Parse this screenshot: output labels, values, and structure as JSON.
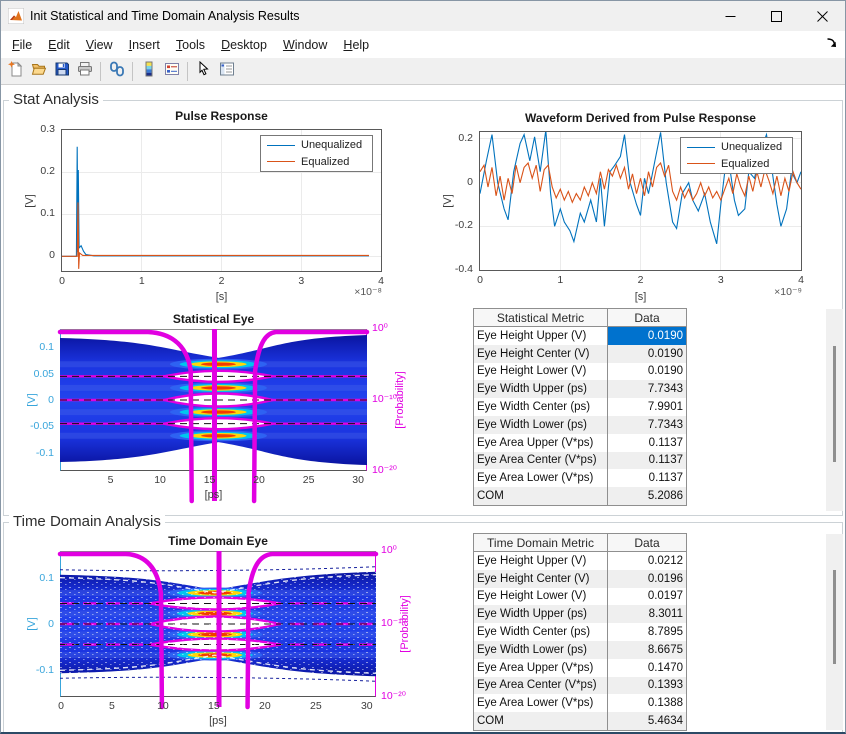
{
  "window": {
    "title": "Init Statistical and Time Domain Analysis Results"
  },
  "menu": {
    "items": [
      "File",
      "Edit",
      "View",
      "Insert",
      "Tools",
      "Desktop",
      "Window",
      "Help"
    ]
  },
  "toolbar": {
    "icons": [
      "new-figure",
      "open-file",
      "save-figure",
      "print-figure",
      "link-plot",
      "insert-colorbar",
      "insert-legend",
      "edit-plot",
      "open-property-inspector"
    ],
    "groups": [
      4,
      1,
      2,
      2
    ]
  },
  "colors": {
    "line_blue": "#0072BD",
    "line_orange": "#D95319",
    "eye_axis_cyan": "#38A5DB",
    "probability_magenta": "#E100E1",
    "selection_blue": "#0072CE",
    "tick_gray": "#3d3d3d"
  },
  "stat_panel": {
    "title": "Stat Analysis",
    "table": {
      "headers": [
        "Statistical Metric",
        "Data"
      ],
      "rows": [
        [
          "Eye Height Upper (V)",
          "0.0190"
        ],
        [
          "Eye Height Center (V)",
          "0.0190"
        ],
        [
          "Eye Height Lower (V)",
          "0.0190"
        ],
        [
          "Eye Width Upper (ps)",
          "7.7343"
        ],
        [
          "Eye Width Center (ps)",
          "7.9901"
        ],
        [
          "Eye Width Lower (ps)",
          "7.7343"
        ],
        [
          "Eye Area Upper (V*ps)",
          "0.1137"
        ],
        [
          "Eye Area Center (V*ps)",
          "0.1137"
        ],
        [
          "Eye Area Lower (V*ps)",
          "0.1137"
        ],
        [
          "COM",
          "5.2086"
        ]
      ],
      "selected_cell": {
        "row": 0,
        "col": 1
      }
    }
  },
  "td_panel": {
    "title": "Time Domain Analysis",
    "table": {
      "headers": [
        "Time Domain Metric",
        "Data"
      ],
      "rows": [
        [
          "Eye Height Upper (V)",
          "0.0212"
        ],
        [
          "Eye Height Center (V)",
          "0.0196"
        ],
        [
          "Eye Height Lower (V)",
          "0.0197"
        ],
        [
          "Eye Width Upper (ps)",
          "8.3011"
        ],
        [
          "Eye Width Center (ps)",
          "8.7895"
        ],
        [
          "Eye Width Lower (ps)",
          "8.6675"
        ],
        [
          "Eye Area Upper (V*ps)",
          "0.1470"
        ],
        [
          "Eye Area Center (V*ps)",
          "0.1393"
        ],
        [
          "Eye Area Lower (V*ps)",
          "0.1388"
        ],
        [
          "COM",
          "5.4634"
        ]
      ],
      "selected_cell": null
    }
  },
  "chart_data": [
    {
      "type": "line",
      "title": "Pulse Response",
      "xlabel": "[s]",
      "ylabel": "[V]",
      "x_multiplier": "×10⁻⁸",
      "xticks": [
        0,
        1,
        2,
        3,
        4
      ],
      "yticks": [
        0,
        0.1,
        0.2,
        0.3
      ],
      "xlim": [
        0,
        4
      ],
      "ylim": [
        -0.035,
        0.3
      ],
      "grid": true,
      "legend": [
        "Unequalized",
        "Equalized"
      ],
      "legend_pos": "northeast",
      "series": [
        {
          "name": "Unequalized",
          "color": "#0072BD",
          "points": [
            [
              0,
              0
            ],
            [
              0.18,
              0
            ],
            [
              0.19,
              0.26
            ],
            [
              0.2,
              0.01
            ],
            [
              0.205,
              0.205
            ],
            [
              0.215,
              0.02
            ],
            [
              0.24,
              0.025
            ],
            [
              0.27,
              0.012
            ],
            [
              0.3,
              0.004
            ],
            [
              0.4,
              0.001
            ],
            [
              3.85,
              0.001
            ]
          ]
        },
        {
          "name": "Equalized",
          "color": "#D95319",
          "points": [
            [
              0,
              0
            ],
            [
              0.19,
              0
            ],
            [
              0.2,
              0.128
            ],
            [
              0.21,
              -0.03
            ],
            [
              0.22,
              0.008
            ],
            [
              0.26,
              0.002
            ],
            [
              3.85,
              0.002
            ]
          ]
        }
      ]
    },
    {
      "type": "line",
      "title": "Waveform Derived from Pulse Response",
      "xlabel": "[s]",
      "ylabel": "[V]",
      "x_multiplier": "×10⁻⁹",
      "xticks": [
        0,
        1,
        2,
        3,
        4
      ],
      "yticks": [
        -0.4,
        -0.2,
        0,
        0.2
      ],
      "xlim": [
        0,
        4
      ],
      "ylim": [
        -0.4,
        0.232
      ],
      "grid": true,
      "legend": [
        "Unequalized",
        "Equalized"
      ],
      "legend_pos": "northeast",
      "series": [
        {
          "name": "Unequalized",
          "color": "#0072BD",
          "points": [
            [
              0,
              -0.05
            ],
            [
              0.08,
              0.1
            ],
            [
              0.15,
              0.22
            ],
            [
              0.22,
              0
            ],
            [
              0.3,
              -0.12
            ],
            [
              0.35,
              -0.17
            ],
            [
              0.42,
              0.05
            ],
            [
              0.5,
              0.18
            ],
            [
              0.55,
              0.22
            ],
            [
              0.62,
              0.1
            ],
            [
              0.68,
              0.21
            ],
            [
              0.75,
              0.05
            ],
            [
              0.82,
              0.24
            ],
            [
              0.88,
              -0.05
            ],
            [
              0.93,
              -0.2
            ],
            [
              1.0,
              -0.12
            ],
            [
              1.05,
              -0.18
            ],
            [
              1.12,
              -0.22
            ],
            [
              1.17,
              -0.27
            ],
            [
              1.25,
              -0.14
            ],
            [
              1.3,
              -0.18
            ],
            [
              1.38,
              -0.08
            ],
            [
              1.45,
              -0.18
            ],
            [
              1.5,
              0.02
            ],
            [
              1.55,
              -0.2
            ],
            [
              1.62,
              0.05
            ],
            [
              1.68,
              0.08
            ],
            [
              1.75,
              0.12
            ],
            [
              1.8,
              0.22
            ],
            [
              1.87,
              0
            ],
            [
              1.95,
              -0.1
            ],
            [
              2.0,
              -0.15
            ],
            [
              2.05,
              0.02
            ],
            [
              2.1,
              -0.05
            ],
            [
              2.18,
              0.1
            ],
            [
              2.25,
              0.23
            ],
            [
              2.32,
              0
            ],
            [
              2.4,
              -0.18
            ],
            [
              2.45,
              -0.21
            ],
            [
              2.52,
              -0.05
            ],
            [
              2.6,
              0
            ],
            [
              2.65,
              -0.08
            ],
            [
              2.72,
              -0.13
            ],
            [
              2.8,
              -0.05
            ],
            [
              2.87,
              -0.18
            ],
            [
              2.95,
              -0.28
            ],
            [
              3.0,
              -0.1
            ],
            [
              3.05,
              0.05
            ],
            [
              3.1,
              0.1
            ],
            [
              3.17,
              -0.08
            ],
            [
              3.22,
              -0.15
            ],
            [
              3.3,
              -0.12
            ],
            [
              3.35,
              0.05
            ],
            [
              3.42,
              0.02
            ],
            [
              3.5,
              0.15
            ],
            [
              3.57,
              0.22
            ],
            [
              3.63,
              0.08
            ],
            [
              3.7,
              -0.1
            ],
            [
              3.75,
              -0.2
            ],
            [
              3.82,
              -0.12
            ],
            [
              3.88,
              0.05
            ],
            [
              3.95,
              0
            ],
            [
              4.0,
              0.05
            ]
          ]
        },
        {
          "name": "Equalized",
          "color": "#D95319",
          "points": [
            [
              0,
              0.05
            ],
            [
              0.05,
              0.08
            ],
            [
              0.1,
              -0.02
            ],
            [
              0.15,
              0.07
            ],
            [
              0.2,
              -0.06
            ],
            [
              0.25,
              0.03
            ],
            [
              0.3,
              -0.08
            ],
            [
              0.35,
              0.02
            ],
            [
              0.4,
              -0.05
            ],
            [
              0.45,
              0.08
            ],
            [
              0.5,
              0
            ],
            [
              0.55,
              0.07
            ],
            [
              0.6,
              0.09
            ],
            [
              0.65,
              0.02
            ],
            [
              0.7,
              0.08
            ],
            [
              0.75,
              -0.04
            ],
            [
              0.8,
              0.06
            ],
            [
              0.85,
              0.08
            ],
            [
              0.9,
              -0.02
            ],
            [
              0.95,
              -0.07
            ],
            [
              1.0,
              -0.03
            ],
            [
              1.05,
              -0.08
            ],
            [
              1.1,
              -0.04
            ],
            [
              1.15,
              -0.09
            ],
            [
              1.2,
              -0.05
            ],
            [
              1.25,
              -0.08
            ],
            [
              1.3,
              -0.02
            ],
            [
              1.35,
              -0.06
            ],
            [
              1.4,
              0
            ],
            [
              1.45,
              -0.05
            ],
            [
              1.5,
              0.05
            ],
            [
              1.55,
              -0.03
            ],
            [
              1.6,
              0.06
            ],
            [
              1.65,
              0.03
            ],
            [
              1.7,
              0.08
            ],
            [
              1.75,
              0.02
            ],
            [
              1.8,
              0.07
            ],
            [
              1.85,
              -0.03
            ],
            [
              1.9,
              0.04
            ],
            [
              1.95,
              -0.05
            ],
            [
              2.0,
              0.02
            ],
            [
              2.05,
              -0.06
            ],
            [
              2.1,
              0.05
            ],
            [
              2.15,
              -0.02
            ],
            [
              2.2,
              0.07
            ],
            [
              2.25,
              0.09
            ],
            [
              2.3,
              0.03
            ],
            [
              2.35,
              0.08
            ],
            [
              2.4,
              -0.04
            ],
            [
              2.45,
              -0.08
            ],
            [
              2.5,
              -0.02
            ],
            [
              2.55,
              -0.07
            ],
            [
              2.6,
              -0.03
            ],
            [
              2.65,
              -0.08
            ],
            [
              2.7,
              -0.05
            ],
            [
              2.75,
              0
            ],
            [
              2.8,
              -0.06
            ],
            [
              2.85,
              -0.02
            ],
            [
              2.9,
              -0.07
            ],
            [
              2.95,
              -0.04
            ],
            [
              3.0,
              -0.08
            ],
            [
              3.05,
              -0.03
            ],
            [
              3.1,
              0.02
            ],
            [
              3.15,
              -0.05
            ],
            [
              3.2,
              0.04
            ],
            [
              3.25,
              -0.02
            ],
            [
              3.3,
              -0.06
            ],
            [
              3.35,
              0.03
            ],
            [
              3.4,
              -0.04
            ],
            [
              3.45,
              0.05
            ],
            [
              3.5,
              -0.02
            ],
            [
              3.55,
              0.06
            ],
            [
              3.6,
              0.01
            ],
            [
              3.65,
              -0.05
            ],
            [
              3.7,
              0.03
            ],
            [
              3.75,
              -0.06
            ],
            [
              3.8,
              0.02
            ],
            [
              3.85,
              -0.04
            ],
            [
              3.9,
              0.05
            ],
            [
              3.95,
              0
            ],
            [
              4.0,
              -0.03
            ]
          ]
        }
      ]
    },
    {
      "type": "eye_density",
      "title": "Statistical Eye",
      "xlabel": "[ps]",
      "ylabel_left": "[V]",
      "ylabel_right": "[Probability]",
      "xticks": [
        5,
        10,
        15,
        20,
        25,
        30
      ],
      "yticks_left": [
        0.1,
        0.05,
        0,
        -0.05,
        -0.1
      ],
      "yticks_right": [
        "10⁰",
        "10⁻¹⁰",
        "10⁻²⁰"
      ],
      "xlim": [
        0,
        31
      ],
      "ylim": [
        -0.135,
        0.135
      ],
      "eye_levels_v": [
        0.045,
        0,
        -0.045
      ],
      "density_band_levels_v": [
        0.068,
        0.023,
        -0.023,
        -0.068
      ],
      "eye_open_ps": [
        10.5,
        21.5
      ],
      "crossing_ps": [
        13.3,
        15.6,
        19.6
      ],
      "bathtub_flat_ps": [
        8.9,
        21.8
      ],
      "body_edge_v": 0.118,
      "body_pinch_v": 0.08,
      "texture": "smooth"
    },
    {
      "type": "eye_density",
      "title": "Time Domain Eye",
      "xlabel": "[ps]",
      "ylabel_left": "[V]",
      "ylabel_right": "[Probability]",
      "xticks": [
        0,
        5,
        10,
        15,
        20,
        25,
        30
      ],
      "yticks_left": [
        0.1,
        0,
        -0.1
      ],
      "yticks_right": [
        "10⁰",
        "10⁻¹⁰",
        "10⁻²⁰"
      ],
      "xlim": [
        0,
        31
      ],
      "ylim": [
        -0.16,
        0.16
      ],
      "eye_levels_v": [
        0.045,
        0,
        -0.045
      ],
      "density_band_levels_v": [
        0.068,
        0.023,
        -0.023,
        -0.068
      ],
      "eye_open_ps": [
        8.8,
        21.6
      ],
      "crossing_ps": [
        10,
        15.6,
        18.4
      ],
      "bathtub_flat_ps": [
        6.5,
        20.8
      ],
      "body_edge_v": 0.108,
      "body_pinch_v": 0.075,
      "texture": "speckled"
    }
  ]
}
